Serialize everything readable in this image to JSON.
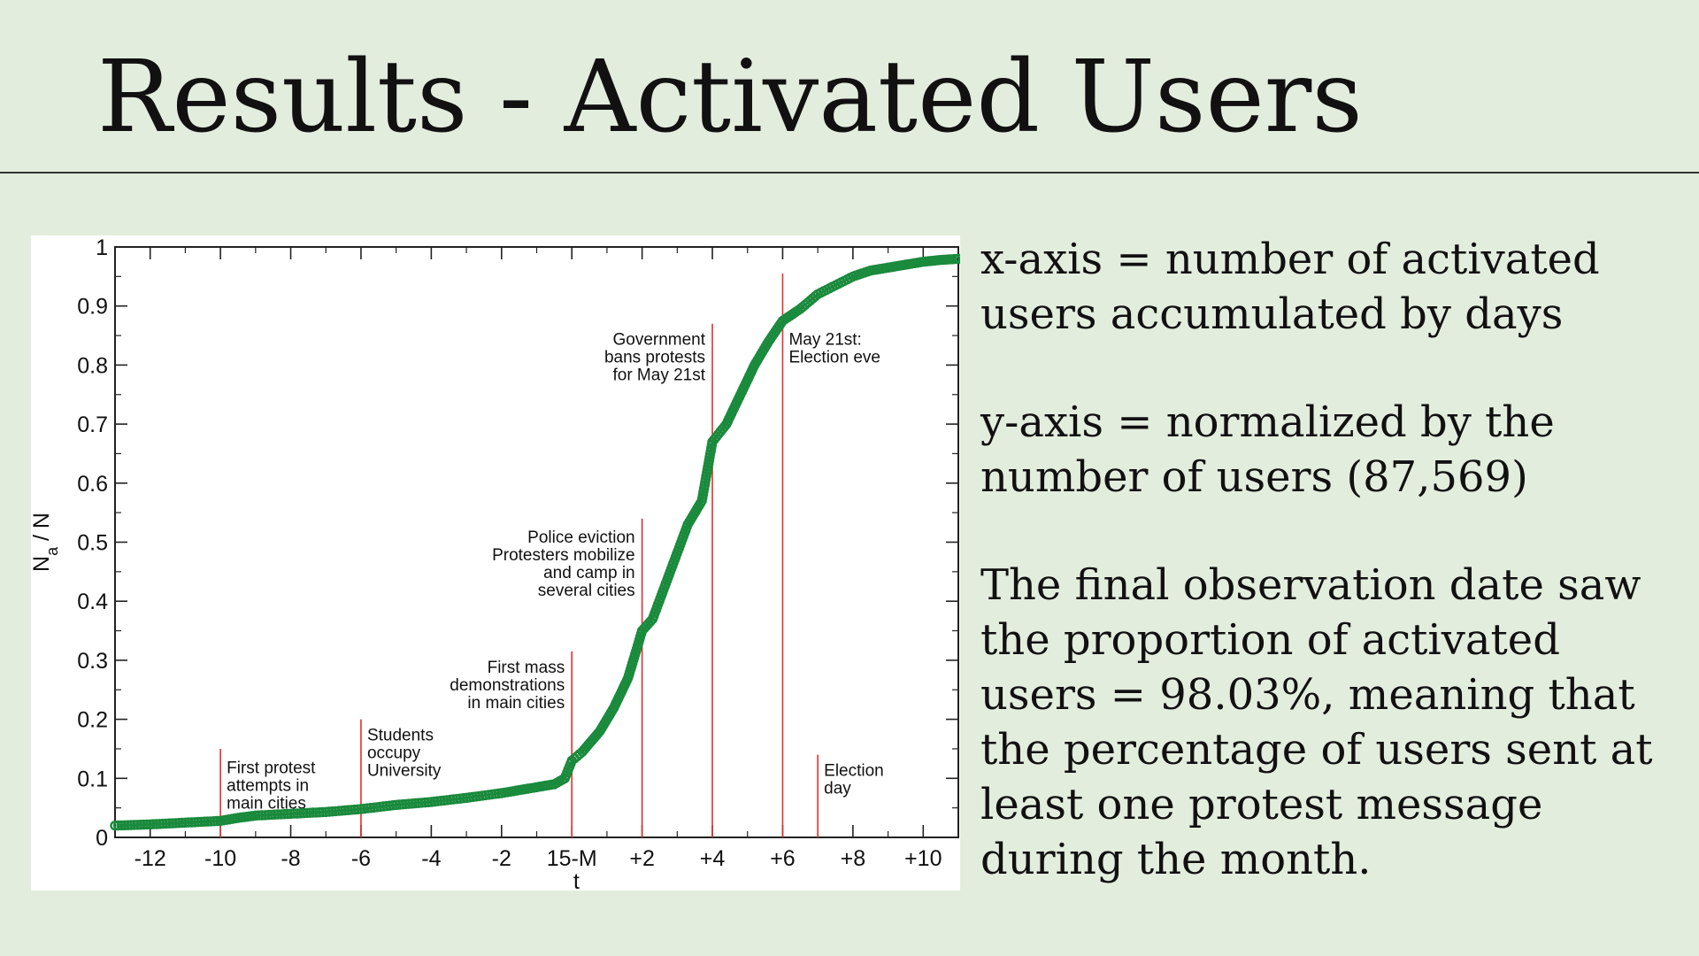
{
  "slide": {
    "title": "Results - Activated Users"
  },
  "notes": [
    "x-axis = number of activated users accumulated by days",
    "y-axis = normalized by the number of users (87,569)",
    "The final observation date saw the proportion of activated users = 98.03%, meaning that the percentage of users sent at least one protest message during the month."
  ],
  "chart_data": {
    "type": "scatter",
    "xlabel": "t",
    "ylabel": "Na / N",
    "ylabel_main": "N",
    "ylabel_sub": "a",
    "ylabel_tail": " / N",
    "xlim": [
      -13,
      11
    ],
    "ylim": [
      0,
      1
    ],
    "x_ticks": [
      {
        "value": -12,
        "label": "-12"
      },
      {
        "value": -10,
        "label": "-10"
      },
      {
        "value": -8,
        "label": "-8"
      },
      {
        "value": -6,
        "label": "-6"
      },
      {
        "value": -4,
        "label": "-4"
      },
      {
        "value": -2,
        "label": "-2"
      },
      {
        "value": 0,
        "label": "15-M"
      },
      {
        "value": 2,
        "label": "+2"
      },
      {
        "value": 4,
        "label": "+4"
      },
      {
        "value": 6,
        "label": "+6"
      },
      {
        "value": 8,
        "label": "+8"
      },
      {
        "value": 10,
        "label": "+10"
      }
    ],
    "y_ticks": [
      {
        "value": 0,
        "label": "0"
      },
      {
        "value": 0.1,
        "label": "0.1"
      },
      {
        "value": 0.2,
        "label": "0.2"
      },
      {
        "value": 0.3,
        "label": "0.3"
      },
      {
        "value": 0.4,
        "label": "0.4"
      },
      {
        "value": 0.5,
        "label": "0.5"
      },
      {
        "value": 0.6,
        "label": "0.6"
      },
      {
        "value": 0.7,
        "label": "0.7"
      },
      {
        "value": 0.8,
        "label": "0.8"
      },
      {
        "value": 0.9,
        "label": "0.9"
      },
      {
        "value": 1,
        "label": "1"
      }
    ],
    "series": [
      {
        "color": "#1a8a3c",
        "x": [
          -13,
          -12,
          -11,
          -10,
          -9.5,
          -9,
          -8,
          -7,
          -6,
          -5,
          -4,
          -3,
          -2,
          -1.5,
          -1,
          -0.5,
          -0.2,
          0,
          0.3,
          0.8,
          1.2,
          1.6,
          2,
          2.3,
          2.8,
          3.3,
          3.7,
          4,
          4.4,
          4.8,
          5.2,
          5.6,
          6,
          6.5,
          7,
          7.5,
          8,
          8.5,
          9,
          9.5,
          10,
          10.5,
          11
        ],
        "y": [
          0.02,
          0.022,
          0.025,
          0.028,
          0.033,
          0.037,
          0.04,
          0.043,
          0.048,
          0.055,
          0.06,
          0.067,
          0.075,
          0.08,
          0.085,
          0.09,
          0.1,
          0.13,
          0.145,
          0.18,
          0.22,
          0.27,
          0.35,
          0.37,
          0.45,
          0.53,
          0.57,
          0.67,
          0.7,
          0.75,
          0.8,
          0.84,
          0.875,
          0.895,
          0.92,
          0.935,
          0.95,
          0.96,
          0.965,
          0.97,
          0.975,
          0.978,
          0.98
        ]
      }
    ],
    "events": [
      {
        "x": -10,
        "y_top": 0.15,
        "label": [
          "First protest",
          "attempts in",
          "main cities"
        ],
        "side": "right",
        "label_y": 0.13
      },
      {
        "x": -6,
        "y_top": 0.2,
        "label": [
          "Students",
          "occupy",
          "University"
        ],
        "side": "right",
        "label_y": 0.185
      },
      {
        "x": 0,
        "y_top": 0.315,
        "label": [
          "First mass",
          "demonstrations",
          "in main cities"
        ],
        "side": "left",
        "label_y": 0.3
      },
      {
        "x": 2,
        "y_top": 0.54,
        "label": [
          "Police eviction",
          "Protesters mobilize",
          "and camp in",
          "several cities"
        ],
        "side": "left",
        "label_y": 0.52
      },
      {
        "x": 4,
        "y_top": 0.87,
        "label": [
          "Government",
          "bans protests",
          "for May 21st"
        ],
        "side": "left",
        "label_y": 0.855
      },
      {
        "x": 6,
        "y_top": 0.955,
        "label": [
          "May 21st:",
          "Election eve"
        ],
        "side": "right",
        "label_y": 0.855
      },
      {
        "x": 7,
        "y_top": 0.14,
        "label": [
          "Election",
          "day"
        ],
        "side": "right",
        "label_y": 0.125
      }
    ],
    "grid": false,
    "legend": "none"
  }
}
